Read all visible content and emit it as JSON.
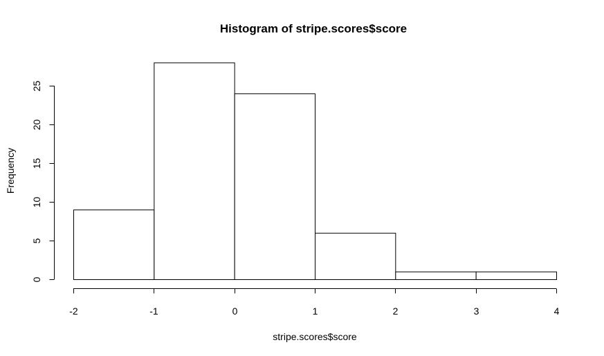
{
  "chart_data": {
    "type": "bar",
    "title": "Histogram of stripe.scores$score",
    "xlabel": "stripe.scores$score",
    "ylabel": "Frequency",
    "bins": [
      {
        "from": -2,
        "to": -1,
        "count": 9
      },
      {
        "from": -1,
        "to": 0,
        "count": 28
      },
      {
        "from": 0,
        "to": 1,
        "count": 24
      },
      {
        "from": 1,
        "to": 2,
        "count": 6
      },
      {
        "from": 2,
        "to": 3,
        "count": 1
      },
      {
        "from": 3,
        "to": 4,
        "count": 1
      }
    ],
    "xlim": [
      -2,
      4
    ],
    "ylim": [
      0,
      28
    ],
    "x_ticks": [
      -2,
      -1,
      0,
      1,
      2,
      3,
      4
    ],
    "x_tick_labels": [
      "-2",
      "-1",
      "0",
      "1",
      "2",
      "3",
      "4"
    ],
    "y_ticks": [
      0,
      5,
      10,
      15,
      20,
      25
    ],
    "y_tick_labels": [
      "0",
      "5",
      "10",
      "15",
      "20",
      "25"
    ],
    "grid": false,
    "bar_fill": "#ffffff",
    "bar_stroke": "#000000"
  }
}
